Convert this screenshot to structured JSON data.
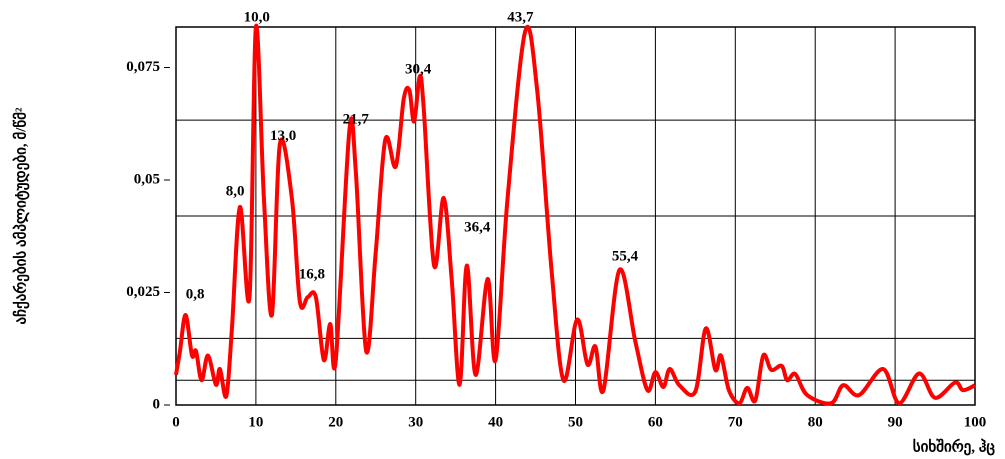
{
  "chart_data": {
    "type": "line",
    "xlabel": "სიხშირე, ჰც",
    "ylabel": "აჩქარების ამპლიტუდები, მ/წმ²",
    "xlim": [
      0,
      100
    ],
    "ylim": [
      0,
      0.084
    ],
    "xticks": [
      0,
      10,
      20,
      30,
      40,
      50,
      60,
      70,
      80,
      90,
      100
    ],
    "yticks": [
      0,
      {
        "value": 0.025,
        "label": "0,025"
      },
      {
        "value": 0.05,
        "label": "0,05"
      },
      {
        "value": 0.075,
        "label": "0,075"
      }
    ],
    "grid_y": [
      0.0055,
      0.0148,
      0.042,
      0.0633
    ],
    "grid": true,
    "series": [
      {
        "color": "#ff0000",
        "x": [
          0,
          0.5,
          1.2,
          2,
          2.5,
          3.2,
          4,
          5,
          5.5,
          6.3,
          7,
          8,
          9.2,
          10,
          11,
          12,
          13,
          14.5,
          15.5,
          16.5,
          17.5,
          18.5,
          19.3,
          20,
          21.7,
          22.5,
          23.8,
          25,
          26.2,
          27.5,
          28.5,
          29.2,
          29.8,
          30.5,
          31,
          32.3,
          33.5,
          34.5,
          35.5,
          36.4,
          37.5,
          39,
          40,
          41.5,
          43.7,
          45.2,
          47,
          48.5,
          50.2,
          51.5,
          52.5,
          53.5,
          55.5,
          57.5,
          59,
          60,
          61,
          61.8,
          63,
          65,
          66.3,
          67.5,
          68.2,
          69.2,
          70.5,
          71.5,
          72.5,
          73.5,
          74.5,
          75.8,
          76.5,
          77.5,
          79,
          82,
          83.5,
          85.5,
          88.5,
          90.5,
          93,
          95,
          97.5,
          98.5,
          100
        ],
        "values": [
          0.0067,
          0.012,
          0.02,
          0.011,
          0.012,
          0.0055,
          0.011,
          0.0045,
          0.008,
          0.002,
          0.017,
          0.044,
          0.024,
          0.084,
          0.046,
          0.02,
          0.058,
          0.046,
          0.023,
          0.024,
          0.024,
          0.01,
          0.018,
          0.01,
          0.061,
          0.052,
          0.012,
          0.034,
          0.059,
          0.053,
          0.068,
          0.07,
          0.063,
          0.073,
          0.066,
          0.031,
          0.046,
          0.028,
          0.0045,
          0.031,
          0.0067,
          0.028,
          0.01,
          0.046,
          0.083,
          0.07,
          0.03,
          0.0055,
          0.019,
          0.009,
          0.013,
          0.0033,
          0.03,
          0.014,
          0.0033,
          0.0073,
          0.004,
          0.008,
          0.0044,
          0.003,
          0.017,
          0.0078,
          0.011,
          0.0033,
          0.0004,
          0.0038,
          0.001,
          0.011,
          0.0078,
          0.0087,
          0.0055,
          0.0069,
          0.0022,
          0.0004,
          0.0044,
          0.0022,
          0.008,
          0.0004,
          0.007,
          0.0016,
          0.005,
          0.0033,
          0.0044
        ]
      }
    ],
    "annotations": [
      {
        "text": "0,8",
        "x": 2.4,
        "y": 0.0244
      },
      {
        "text": "8,0",
        "x": 7.4,
        "y": 0.0473
      },
      {
        "text": "10,0",
        "x": 10.1,
        "y": 0.086
      },
      {
        "text": "13,0",
        "x": 13.4,
        "y": 0.0596
      },
      {
        "text": "16,8",
        "x": 17.0,
        "y": 0.0289
      },
      {
        "text": "21,7",
        "x": 22.5,
        "y": 0.0633
      },
      {
        "text": "30,4",
        "x": 30.3,
        "y": 0.0744
      },
      {
        "text": "36,4",
        "x": 37.7,
        "y": 0.0393
      },
      {
        "text": "43,7",
        "x": 43.1,
        "y": 0.086
      },
      {
        "text": "55,4",
        "x": 56.2,
        "y": 0.0329
      }
    ]
  }
}
